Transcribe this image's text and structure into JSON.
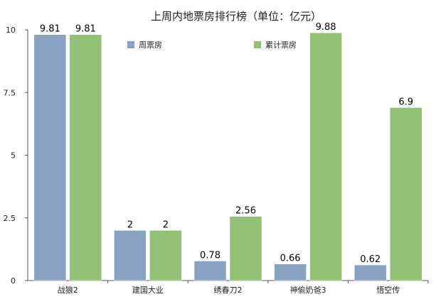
{
  "chart_data": {
    "type": "bar",
    "title": "上周内地票房排行榜（单位：亿元）",
    "categories": [
      "战狼2",
      "建国大业",
      "绣春刀2",
      "神偷奶爸3",
      "悟空传"
    ],
    "series": [
      {
        "name": "周票房",
        "color": "#8aa2c2",
        "values": [
          9.81,
          2,
          0.78,
          0.66,
          0.62
        ]
      },
      {
        "name": "累计票房",
        "color": "#92c074",
        "values": [
          9.81,
          2,
          2.56,
          9.88,
          6.9
        ]
      }
    ],
    "value_labels": [
      [
        "9.81",
        "2",
        "0.78",
        "0.66",
        "0.62"
      ],
      [
        "9.81",
        "2",
        "2.56",
        "9.88",
        "6.9"
      ]
    ],
    "ylim": [
      0,
      10
    ],
    "yticks": [
      0,
      2.5,
      5,
      7.5,
      10
    ],
    "ytick_labels": [
      "0",
      "2.5",
      "5",
      "7.5",
      "10"
    ],
    "grid": false,
    "legend_position": "top"
  }
}
